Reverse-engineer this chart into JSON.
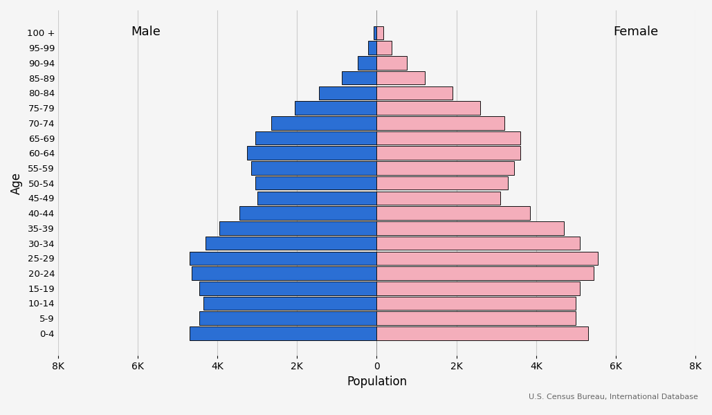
{
  "age_groups": [
    "0-4",
    "5-9",
    "10-14",
    "15-19",
    "20-24",
    "25-29",
    "30-34",
    "35-39",
    "40-44",
    "45-49",
    "50-54",
    "55-59",
    "60-64",
    "65-69",
    "70-74",
    "75-79",
    "80-84",
    "85-89",
    "90-94",
    "95-99",
    "100 +"
  ],
  "male": [
    4700,
    4450,
    4350,
    4450,
    4650,
    4700,
    4300,
    3950,
    3450,
    3000,
    3050,
    3150,
    3250,
    3050,
    2650,
    2050,
    1450,
    880,
    470,
    210,
    80
  ],
  "female": [
    5300,
    5000,
    5000,
    5100,
    5450,
    5550,
    5100,
    4700,
    3850,
    3100,
    3300,
    3450,
    3600,
    3600,
    3200,
    2600,
    1900,
    1200,
    750,
    380,
    170
  ],
  "male_color": "#2B6FD4",
  "female_color": "#F4AEBB",
  "edge_color": "#111111",
  "background_color": "#f5f5f5",
  "xlabel": "Population",
  "ylabel": "Age",
  "xlim": [
    -8000,
    8000
  ],
  "xticks": [
    -8000,
    -6000,
    -4000,
    -2000,
    0,
    2000,
    4000,
    6000,
    8000
  ],
  "xticklabels": [
    "8K",
    "6K",
    "4K",
    "2K",
    "0",
    "2K",
    "4K",
    "6K",
    "8K"
  ],
  "male_label": "Male",
  "female_label": "Female",
  "grid_color": "#cccccc",
  "annotation": "U.S. Census Bureau, International Database",
  "bar_height": 0.9,
  "linewidth": 0.7
}
